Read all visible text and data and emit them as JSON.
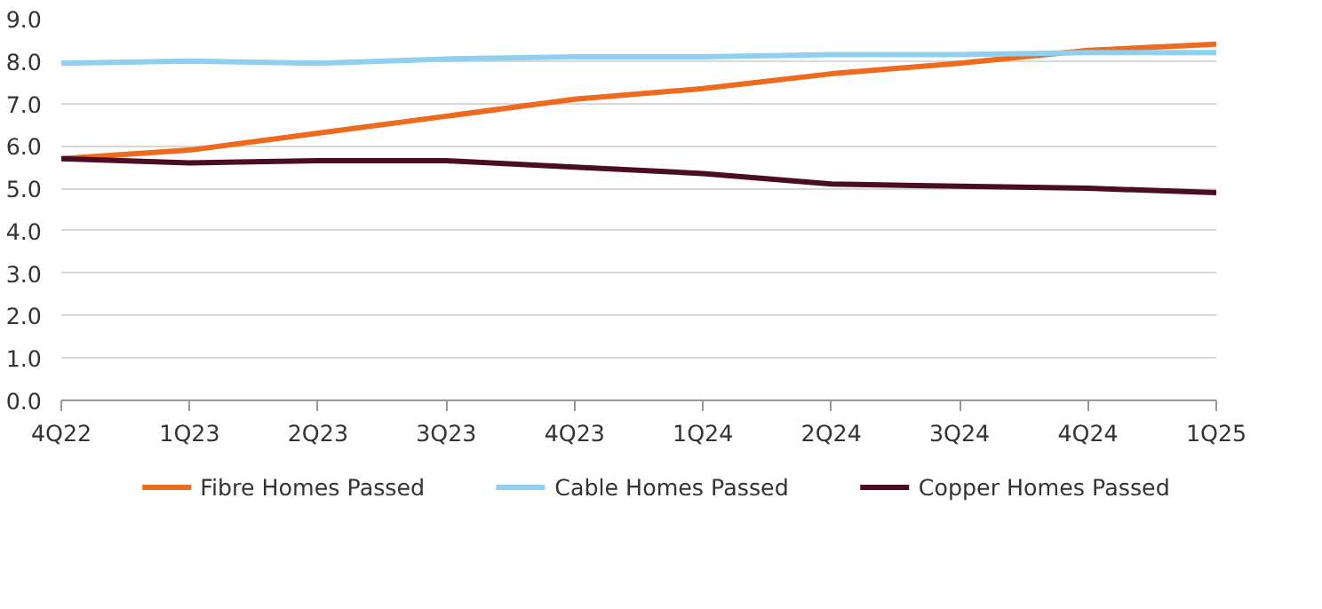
{
  "chart_data": {
    "type": "line",
    "categories": [
      "4Q22",
      "1Q23",
      "2Q23",
      "3Q23",
      "4Q23",
      "1Q24",
      "2Q24",
      "3Q24",
      "4Q24",
      "1Q25"
    ],
    "series": [
      {
        "name": "Fibre Homes Passed",
        "color": "#ee6a1f",
        "values": [
          5.7,
          5.9,
          6.3,
          6.7,
          7.1,
          7.35,
          7.7,
          7.95,
          8.25,
          8.4
        ]
      },
      {
        "name": "Cable Homes Passed",
        "color": "#8fd0f0",
        "values": [
          7.95,
          8.0,
          7.95,
          8.05,
          8.1,
          8.1,
          8.15,
          8.15,
          8.2,
          8.2
        ]
      },
      {
        "name": "Copper Homes Passed",
        "color": "#4a0d24",
        "values": [
          5.7,
          5.6,
          5.65,
          5.65,
          5.5,
          5.35,
          5.1,
          5.05,
          5.0,
          4.9
        ]
      }
    ],
    "ylim": [
      0,
      9
    ],
    "yticks": [
      {
        "value": 0,
        "label": "0.0"
      },
      {
        "value": 1,
        "label": "1.0"
      },
      {
        "value": 2,
        "label": "2.0"
      },
      {
        "value": 3,
        "label": "3.0"
      },
      {
        "value": 4,
        "label": "4.0"
      },
      {
        "value": 5,
        "label": "5.0"
      },
      {
        "value": 6,
        "label": "6.0"
      },
      {
        "value": 7,
        "label": "7.0"
      },
      {
        "value": 8,
        "label": "8.0"
      },
      {
        "value": 9,
        "label": "9.0"
      }
    ],
    "grid": "y",
    "legend": "bottom",
    "line_style": "solid",
    "marker": "none"
  }
}
